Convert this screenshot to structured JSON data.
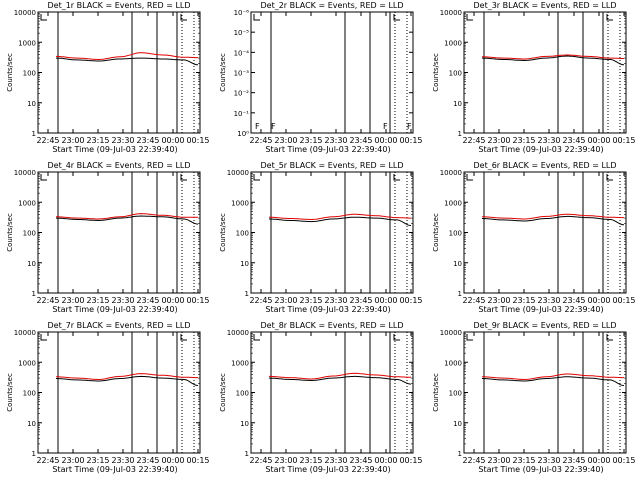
{
  "colors": {
    "events": "#000000",
    "lld": "#e00000",
    "background": "#ffffff"
  },
  "shared": {
    "xlabel": "Start Time (09-Jul-03 22:39:40)",
    "ylabel": "Counts/sec",
    "xticks": [
      "22:45",
      "23:00",
      "23:15",
      "23:30",
      "23:45",
      "00:00",
      "00:15"
    ],
    "yticks_log": [
      "1",
      "10",
      "100",
      "1000",
      "10000"
    ],
    "yticks_tiny": [
      "10⁰",
      "10⁻¹",
      "10⁻²",
      "10⁻³",
      "10⁻⁴",
      "10⁻⁵",
      "10⁻⁶"
    ]
  },
  "chart_data": [
    {
      "type": "line",
      "title": "Det_1r BLACK = Events, RED = LLD",
      "xlabel": "Start Time (09-Jul-03 22:39:40)",
      "ylabel": "Counts/sec",
      "x": [
        0,
        15,
        30,
        45,
        60,
        75,
        90,
        100
      ],
      "ylim": [
        1,
        10000
      ],
      "yscale": "log",
      "series": [
        {
          "name": "Events",
          "values": [
            300,
            260,
            240,
            280,
            300,
            280,
            260,
            180
          ]
        },
        {
          "name": "LLD",
          "values": [
            340,
            300,
            270,
            330,
            450,
            380,
            320,
            310
          ]
        }
      ],
      "markers": [
        "vline",
        "vline",
        "vline",
        "vline",
        "dotted",
        "dotted"
      ]
    },
    {
      "type": "line",
      "title": "Det_2r BLACK = Events, RED = LLD",
      "xlabel": "Start Time (09-Jul-03 22:39:40)",
      "ylabel": "Counts/sec",
      "ylim": [
        1e-06,
        1
      ],
      "yscale": "log",
      "series": [],
      "annotations": [
        "F",
        "F",
        "F",
        "F"
      ]
    },
    {
      "type": "line",
      "title": "Det_3r BLACK = Events, RED = LLD",
      "xlabel": "Start Time (09-Jul-03 22:39:40)",
      "ylabel": "Counts/sec",
      "x": [
        0,
        15,
        30,
        45,
        60,
        75,
        90,
        100
      ],
      "ylim": [
        1,
        10000
      ],
      "yscale": "log",
      "series": [
        {
          "name": "Events",
          "values": [
            300,
            270,
            250,
            300,
            350,
            300,
            270,
            180
          ]
        },
        {
          "name": "LLD",
          "values": [
            330,
            300,
            280,
            340,
            380,
            340,
            300,
            290
          ]
        }
      ]
    },
    {
      "type": "line",
      "title": "Det_4r BLACK = Events, RED = LLD",
      "xlabel": "Start Time (09-Jul-03 22:39:40)",
      "ylabel": "Counts/sec",
      "x": [
        0,
        15,
        30,
        45,
        60,
        75,
        90,
        100
      ],
      "ylim": [
        1,
        10000
      ],
      "yscale": "log",
      "series": [
        {
          "name": "Events",
          "values": [
            300,
            270,
            250,
            300,
            350,
            330,
            280,
            190
          ]
        },
        {
          "name": "LLD",
          "values": [
            330,
            300,
            280,
            330,
            420,
            370,
            320,
            320
          ]
        }
      ]
    },
    {
      "type": "line",
      "title": "Det_5r BLACK = Events, RED = LLD",
      "xlabel": "Start Time (09-Jul-03 22:39:40)",
      "ylabel": "Counts/sec",
      "x": [
        0,
        15,
        30,
        45,
        60,
        75,
        90,
        100
      ],
      "ylim": [
        1,
        10000
      ],
      "yscale": "log",
      "series": [
        {
          "name": "Events",
          "values": [
            280,
            250,
            230,
            280,
            320,
            300,
            260,
            170
          ]
        },
        {
          "name": "LLD",
          "values": [
            320,
            290,
            270,
            330,
            400,
            360,
            310,
            300
          ]
        }
      ]
    },
    {
      "type": "line",
      "title": "Det_6r BLACK = Events, RED = LLD",
      "xlabel": "Start Time (09-Jul-03 22:39:40)",
      "ylabel": "Counts/sec",
      "x": [
        0,
        15,
        30,
        45,
        60,
        75,
        90,
        100
      ],
      "ylim": [
        1,
        10000
      ],
      "yscale": "log",
      "series": [
        {
          "name": "Events",
          "values": [
            290,
            260,
            240,
            290,
            340,
            310,
            270,
            180
          ]
        },
        {
          "name": "LLD",
          "values": [
            330,
            300,
            280,
            340,
            400,
            360,
            320,
            310
          ]
        }
      ]
    },
    {
      "type": "line",
      "title": "Det_7r BLACK = Events, RED = LLD",
      "xlabel": "Start Time (09-Jul-03 22:39:40)",
      "ylabel": "Counts/sec",
      "x": [
        0,
        15,
        30,
        45,
        60,
        75,
        90,
        100
      ],
      "ylim": [
        1,
        10000
      ],
      "yscale": "log",
      "series": [
        {
          "name": "Events",
          "values": [
            290,
            260,
            240,
            290,
            340,
            300,
            270,
            170
          ]
        },
        {
          "name": "LLD",
          "values": [
            330,
            300,
            270,
            340,
            420,
            370,
            320,
            310
          ]
        }
      ]
    },
    {
      "type": "line",
      "title": "Det_8r BLACK = Events, RED = LLD",
      "xlabel": "Start Time (09-Jul-03 22:39:40)",
      "ylabel": "Counts/sec",
      "x": [
        0,
        15,
        30,
        45,
        60,
        75,
        90,
        100
      ],
      "ylim": [
        1,
        10000
      ],
      "yscale": "log",
      "series": [
        {
          "name": "Events",
          "values": [
            300,
            270,
            250,
            300,
            340,
            310,
            270,
            190
          ]
        },
        {
          "name": "LLD",
          "values": [
            340,
            310,
            280,
            350,
            430,
            380,
            330,
            320
          ]
        }
      ]
    },
    {
      "type": "line",
      "title": "Det_9r BLACK = Events, RED = LLD",
      "xlabel": "Start Time (09-Jul-03 22:39:40)",
      "ylabel": "Counts/sec",
      "x": [
        0,
        15,
        30,
        45,
        60,
        75,
        90,
        100
      ],
      "ylim": [
        1,
        10000
      ],
      "yscale": "log",
      "series": [
        {
          "name": "Events",
          "values": [
            290,
            260,
            240,
            290,
            330,
            300,
            260,
            170
          ]
        },
        {
          "name": "LLD",
          "values": [
            330,
            300,
            270,
            330,
            410,
            360,
            320,
            310
          ]
        }
      ]
    }
  ]
}
